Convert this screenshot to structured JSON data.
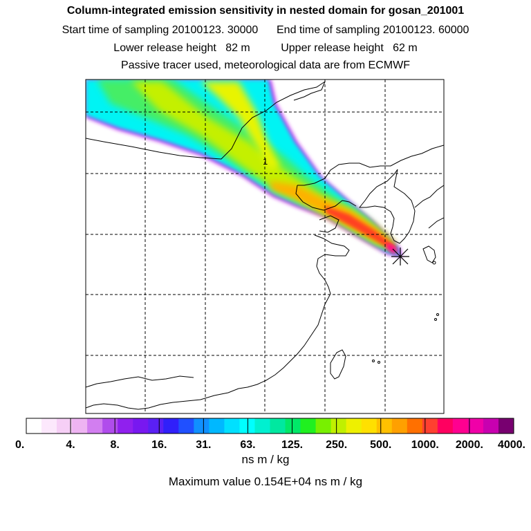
{
  "title": "Column-integrated emission sensitivity in nested domain for gosan_201001",
  "sampling": {
    "start_label": "Start time of sampling",
    "start_value": "20100123. 30000",
    "end_label": "End time of sampling",
    "end_value": "20100123. 60000"
  },
  "release": {
    "lower_label": "Lower release height",
    "lower_value": "82 m",
    "upper_label": "Upper release height",
    "upper_value": "62 m"
  },
  "subtitle": "Passive tracer used, meteorological data are from ECMWF",
  "map_label": "1",
  "colorbar": {
    "tick_labels": [
      "0.",
      "4.",
      "8.",
      "16.",
      "31.",
      "63.",
      "125.",
      "250.",
      "500.",
      "1000.",
      "2000.",
      "4000."
    ],
    "colors": [
      "#ffffff",
      "#fce8fc",
      "#f6cff6",
      "#eeb4f2",
      "#d27ef0",
      "#b04cec",
      "#9020ee",
      "#7818f0",
      "#5a20f4",
      "#3020fa",
      "#2050ff",
      "#1090ff",
      "#00b8ff",
      "#00e0ff",
      "#00ffff",
      "#00f0d0",
      "#00e8a0",
      "#00e868",
      "#20f020",
      "#78f000",
      "#c0f000",
      "#eef000",
      "#ffe000",
      "#ffc000",
      "#ffa000",
      "#ff7000",
      "#ff4030",
      "#ff0060",
      "#ff0090",
      "#f000a8",
      "#c800b0",
      "#780070"
    ],
    "units": "ns m / kg"
  },
  "maximum": {
    "label": "Maximum value",
    "value": "0.154E+04",
    "units": "ns m / kg"
  },
  "chart_data": {
    "type": "heatmap",
    "title": "Column-integrated emission sensitivity in nested domain for gosan_201001",
    "variable": "emission sensitivity",
    "units": "ns m / kg",
    "scale_breaks": [
      0,
      4,
      8,
      16,
      31,
      63,
      125,
      250,
      500,
      1000,
      2000,
      4000
    ],
    "maximum_value": 1540,
    "receptor": "gosan",
    "grid": true
  }
}
